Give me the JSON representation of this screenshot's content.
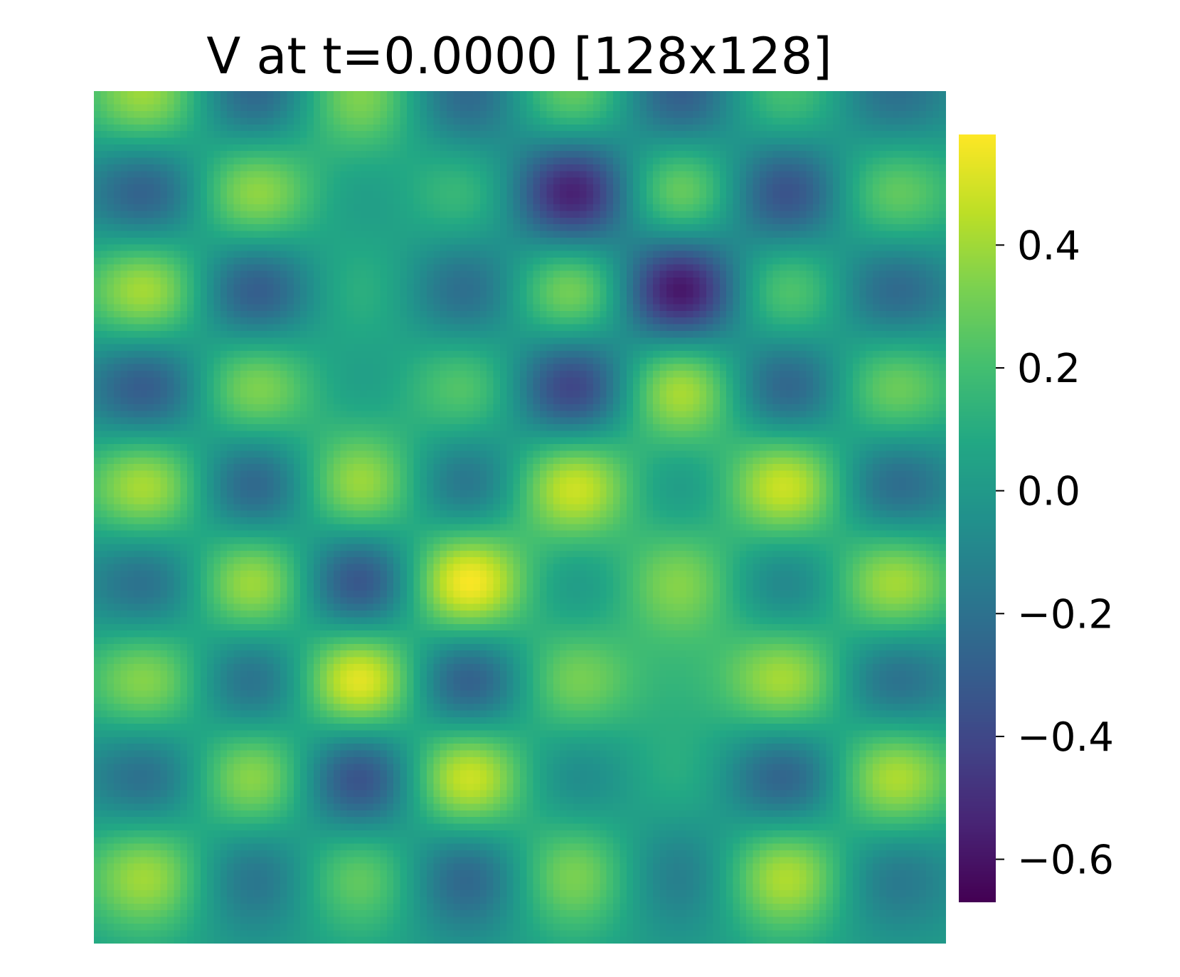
{
  "chart_data": {
    "type": "heatmap",
    "title": "V at t=0.0000 [128x128]",
    "xlabel": "",
    "ylabel": "",
    "grid": false,
    "colormap": "viridis",
    "colorbar": {
      "vmin": -0.67,
      "vmax": 0.58,
      "ticks": [
        -0.6,
        -0.4,
        -0.2,
        0.0,
        0.2,
        0.4
      ],
      "tick_labels": [
        "−0.6",
        "−0.4",
        "−0.2",
        "0.0",
        "0.2",
        "0.4"
      ]
    },
    "grid_size": [
      128,
      128
    ],
    "cells_note_rows_top_to_bottom": "approximate blob amplitudes sampled on a 9x8 lattice",
    "columns": 8,
    "rows": 9,
    "values": [
      [
        0.38,
        -0.32,
        0.33,
        -0.3,
        0.3,
        -0.35,
        0.22,
        -0.25
      ],
      [
        -0.35,
        0.38,
        -0.05,
        0.18,
        -0.62,
        0.35,
        -0.42,
        0.28
      ],
      [
        0.42,
        -0.38,
        0.12,
        -0.28,
        0.38,
        -0.67,
        0.28,
        -0.3
      ],
      [
        -0.38,
        0.35,
        -0.05,
        0.25,
        -0.5,
        0.45,
        -0.35,
        0.3
      ],
      [
        0.42,
        -0.35,
        0.4,
        -0.28,
        0.48,
        -0.1,
        0.48,
        -0.3
      ],
      [
        -0.28,
        0.42,
        -0.45,
        0.58,
        -0.1,
        0.32,
        -0.2,
        0.4
      ],
      [
        0.35,
        -0.3,
        0.56,
        -0.4,
        0.3,
        0.05,
        0.4,
        -0.28
      ],
      [
        -0.28,
        0.38,
        -0.45,
        0.5,
        -0.15,
        0.1,
        -0.35,
        0.42
      ],
      [
        0.38,
        -0.25,
        0.28,
        -0.32,
        0.32,
        -0.2,
        0.42,
        -0.22
      ]
    ]
  }
}
